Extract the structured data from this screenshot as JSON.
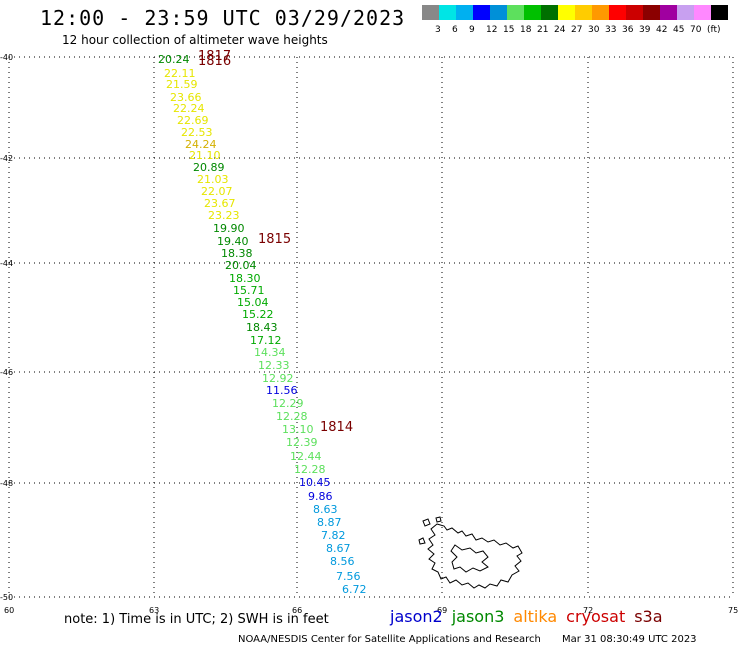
{
  "header": {
    "title": "12:00 - 23:59 UTC 03/29/2023",
    "subtitle": "12 hour collection of altimeter wave heights"
  },
  "colorbar": {
    "colors": [
      "#888888",
      "#00e5e5",
      "#00b0f0",
      "#0000ff",
      "#0090d8",
      "#5de05d",
      "#00c000",
      "#007000",
      "#ffff00",
      "#ffcc00",
      "#ff9900",
      "#ff0000",
      "#cc0000",
      "#8b0000",
      "#a000a0",
      "#c8a0f0",
      "#ff88ff",
      "#000000"
    ],
    "labels": [
      "3",
      "6",
      "9",
      "12",
      "15",
      "18",
      "21",
      "24",
      "27",
      "30",
      "33",
      "36",
      "39",
      "42",
      "45",
      "70",
      "(ft)"
    ]
  },
  "map": {
    "lat_labels": [
      "-40",
      "-42",
      "-44",
      "-46",
      "-48",
      "-50"
    ],
    "lon_labels": [
      "60",
      "63",
      "66",
      "69",
      "72",
      "75"
    ],
    "passes": [
      {
        "id": "1817",
        "color": "#7a0000"
      },
      {
        "id": "1816",
        "color": "#7a0000"
      },
      {
        "id": "1815",
        "color": "#7a0000"
      },
      {
        "id": "1814",
        "color": "#7a0000"
      }
    ],
    "island_name": "kerguelen-islands",
    "observations": [
      {
        "v": "20.24",
        "c": "#008800"
      },
      {
        "v": "22.11",
        "c": "#e6e600"
      },
      {
        "v": "21.59",
        "c": "#e6e600"
      },
      {
        "v": "23.66",
        "c": "#e6e600"
      },
      {
        "v": "22.24",
        "c": "#e6e600"
      },
      {
        "v": "22.69",
        "c": "#e6e600"
      },
      {
        "v": "22.53",
        "c": "#e6e600"
      },
      {
        "v": "24.24",
        "c": "#d4b000"
      },
      {
        "v": "21.10",
        "c": "#e6e600"
      },
      {
        "v": "20.89",
        "c": "#008800"
      },
      {
        "v": "21.03",
        "c": "#e6e600"
      },
      {
        "v": "22.07",
        "c": "#e6e600"
      },
      {
        "v": "23.67",
        "c": "#e6e600"
      },
      {
        "v": "23.23",
        "c": "#e6e600"
      },
      {
        "v": "19.90",
        "c": "#008800"
      },
      {
        "v": "19.40",
        "c": "#008800"
      },
      {
        "v": "18.38",
        "c": "#008800"
      },
      {
        "v": "20.04",
        "c": "#008800"
      },
      {
        "v": "18.30",
        "c": "#00aa00"
      },
      {
        "v": "15.71",
        "c": "#00aa00"
      },
      {
        "v": "15.04",
        "c": "#00aa00"
      },
      {
        "v": "15.22",
        "c": "#00aa00"
      },
      {
        "v": "18.43",
        "c": "#008800"
      },
      {
        "v": "17.12",
        "c": "#00aa00"
      },
      {
        "v": "14.34",
        "c": "#5de05d"
      },
      {
        "v": "12.33",
        "c": "#5de05d"
      },
      {
        "v": "12.92",
        "c": "#5de05d"
      },
      {
        "v": "11.56",
        "c": "#0000dd"
      },
      {
        "v": "12.29",
        "c": "#5de05d"
      },
      {
        "v": "12.28",
        "c": "#5de05d"
      },
      {
        "v": "13.10",
        "c": "#5de05d"
      },
      {
        "v": "12.39",
        "c": "#5de05d"
      },
      {
        "v": "12.44",
        "c": "#5de05d"
      },
      {
        "v": "12.28",
        "c": "#5de05d"
      },
      {
        "v": "10.45",
        "c": "#0000dd"
      },
      {
        "v": "9.86",
        "c": "#0000dd"
      },
      {
        "v": "8.63",
        "c": "#0099dd"
      },
      {
        "v": "8.87",
        "c": "#0099dd"
      },
      {
        "v": "7.82",
        "c": "#0099dd"
      },
      {
        "v": "8.67",
        "c": "#0099dd"
      },
      {
        "v": "8.56",
        "c": "#0099dd"
      },
      {
        "v": "7.56",
        "c": "#0099dd"
      },
      {
        "v": "6.72",
        "c": "#0099dd"
      }
    ]
  },
  "note": "note:  1) Time is in UTC; 2) SWH is in feet",
  "legend": [
    {
      "name": "jason2",
      "color": "#0000cc"
    },
    {
      "name": "jason3",
      "color": "#008800"
    },
    {
      "name": "altika",
      "color": "#ff8800"
    },
    {
      "name": "cryosat",
      "color": "#cc0000"
    },
    {
      "name": "s3a",
      "color": "#7a0000"
    }
  ],
  "footer": {
    "credit": "NOAA/NESDIS Center for Satellite Applications and Research",
    "timestamp": "Mar 31 08:30:49 UTC 2023"
  }
}
